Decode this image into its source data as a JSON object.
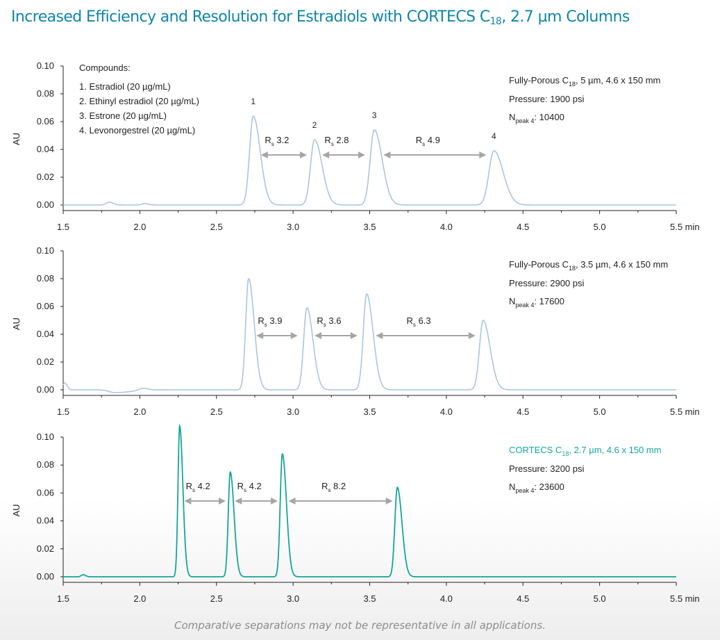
{
  "page": {
    "title": "Increased Efficiency and Resolution for Estradiols with CORTECS C",
    "title_sub": "18",
    "title_rest": ", 2.7 µm Columns",
    "footnote": "Comparative separations may not be representative in all applications."
  },
  "colors": {
    "title": "#0f86a8",
    "porous_trace": "#a8c6de",
    "cortecs_trace": "#13a69a",
    "arrow": "#a6a6a6",
    "axis": "#222222"
  },
  "compounds": {
    "heading": "Compounds:",
    "items": [
      "1. Estradiol (20 µg/mL)",
      "2. Ethinyl estradiol (20 µg/mL)",
      "3. Estrone (20 µg/mL)",
      "4. Levonorgestrel (20 µg/mL)"
    ]
  },
  "chart_data": [
    {
      "type": "line",
      "title": "",
      "ylabel": "AU",
      "xlabel": "min",
      "xlim": [
        1.5,
        5.5
      ],
      "ylim": [
        0,
        0.1
      ],
      "x_ticks": [
        "1.5",
        "2.0",
        "2.5",
        "3.0",
        "3.5",
        "4.0",
        "4.5",
        "5.0",
        "5.5 min"
      ],
      "y_ticks": [
        "0.00",
        "0.02",
        "0.04",
        "0.06",
        "0.08",
        "0.10"
      ],
      "column": {
        "name": "Fully-Porous C",
        "sub": "18",
        "rest": ", 5 µm, 4.6 x 150 mm"
      },
      "pressure": "Pressure: 1900 psi",
      "npeak": {
        "prefix": "N",
        "sub": "peak 4",
        "rest": ": 10400"
      },
      "peaks": [
        {
          "label": "1",
          "t": 2.74,
          "h": 0.064,
          "w": 0.024
        },
        {
          "label": "2",
          "t": 3.14,
          "h": 0.047,
          "w": 0.026
        },
        {
          "label": "3",
          "t": 3.53,
          "h": 0.054,
          "w": 0.027
        },
        {
          "label": "4",
          "t": 4.31,
          "h": 0.039,
          "w": 0.032
        }
      ],
      "minor_peaks": [
        {
          "t": 1.8,
          "h": 0.002,
          "w": 0.02
        },
        {
          "t": 2.03,
          "h": 0.001,
          "w": 0.02
        }
      ],
      "resolutions": [
        {
          "text": "3.2",
          "from": 2.79,
          "to": 3.09
        },
        {
          "text": "2.8",
          "from": 3.19,
          "to": 3.47
        },
        {
          "text": "4.9",
          "from": 3.59,
          "to": 4.26
        }
      ]
    },
    {
      "type": "line",
      "title": "",
      "ylabel": "AU",
      "xlabel": "min",
      "xlim": [
        1.5,
        5.5
      ],
      "ylim": [
        0,
        0.1
      ],
      "x_ticks": [
        "1.5",
        "2.0",
        "2.5",
        "3.0",
        "3.5",
        "4.0",
        "4.5",
        "5.0",
        "5.5 min"
      ],
      "y_ticks": [
        "0.00",
        "0.02",
        "0.04",
        "0.06",
        "0.08",
        "0.10"
      ],
      "column": {
        "name": "Fully-Porous C",
        "sub": "18",
        "rest": ", 3.5 µm, 4.6 x 150 mm"
      },
      "pressure": "Pressure: 2900 psi",
      "npeak": {
        "prefix": "N",
        "sub": "peak 4",
        "rest": ": 17600"
      },
      "peaks": [
        {
          "label": "",
          "t": 2.71,
          "h": 0.08,
          "w": 0.019
        },
        {
          "label": "",
          "t": 3.09,
          "h": 0.059,
          "w": 0.021
        },
        {
          "label": "",
          "t": 3.48,
          "h": 0.069,
          "w": 0.022
        },
        {
          "label": "",
          "t": 4.24,
          "h": 0.05,
          "w": 0.024
        }
      ],
      "minor_peaks": [
        {
          "t": 1.51,
          "h": 0.005,
          "w": 0.012
        },
        {
          "t": 2.02,
          "h": 0.0015,
          "w": 0.025
        }
      ],
      "dip": {
        "t": 1.84,
        "h": -0.002,
        "w": 0.04
      },
      "resolutions": [
        {
          "text": "3.9",
          "from": 2.76,
          "to": 3.03
        },
        {
          "text": "3.6",
          "from": 3.14,
          "to": 3.42
        },
        {
          "text": "6.3",
          "from": 3.54,
          "to": 4.19
        }
      ]
    },
    {
      "type": "line",
      "title": "",
      "ylabel": "AU",
      "xlabel": "min",
      "xlim": [
        1.5,
        5.5
      ],
      "ylim": [
        0,
        0.1
      ],
      "x_ticks": [
        "1.5",
        "2.0",
        "2.5",
        "3.0",
        "3.5",
        "4.0",
        "4.5",
        "5.0",
        "5.5 min"
      ],
      "y_ticks": [
        "0.00",
        "0.02",
        "0.04",
        "0.06",
        "0.08",
        "0.10"
      ],
      "column": {
        "name": "CORTECS C",
        "sub": "18",
        "rest": ", 2.7 µm, 4.6 x 150 mm",
        "highlight": true
      },
      "pressure": "Pressure: 3200 psi",
      "npeak": {
        "prefix": "N",
        "sub": "peak 4",
        "rest": ": 23600"
      },
      "peaks": [
        {
          "label": "",
          "t": 2.26,
          "h": 0.108,
          "w": 0.011
        },
        {
          "label": "",
          "t": 2.59,
          "h": 0.075,
          "w": 0.013
        },
        {
          "label": "",
          "t": 2.93,
          "h": 0.088,
          "w": 0.014
        },
        {
          "label": "",
          "t": 3.68,
          "h": 0.064,
          "w": 0.016
        }
      ],
      "minor_peaks": [
        {
          "t": 1.63,
          "h": 0.0015,
          "w": 0.012
        }
      ],
      "resolutions": [
        {
          "text": "4.2",
          "from": 2.29,
          "to": 2.56
        },
        {
          "text": "4.2",
          "from": 2.62,
          "to": 2.9
        },
        {
          "text": "8.2",
          "from": 2.97,
          "to": 3.65
        }
      ]
    }
  ]
}
